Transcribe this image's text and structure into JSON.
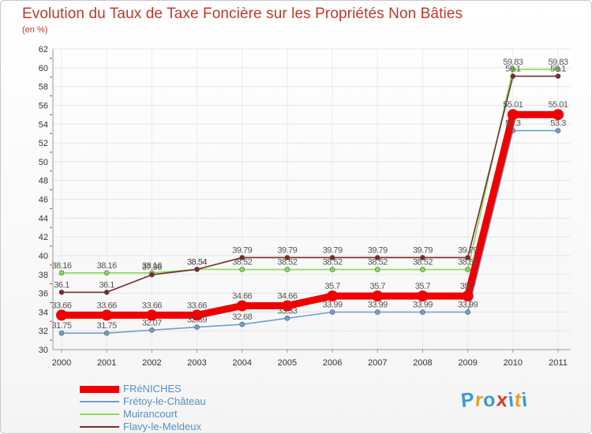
{
  "title": "Evolution du Taux de Taxe Foncière sur les Propriétés Non Bâties",
  "unit": "(en %)",
  "chart_data": {
    "type": "line",
    "title": "Evolution du Taux de Taxe Foncière sur les Propriétés Non Bâties",
    "ylabel": "(en %)",
    "xlabel": "",
    "ylim": [
      30,
      62
    ],
    "yticks": [
      30,
      32,
      34,
      36,
      38,
      40,
      42,
      44,
      46,
      48,
      50,
      52,
      54,
      56,
      58,
      60,
      62
    ],
    "categories": [
      "2000",
      "2001",
      "2002",
      "2003",
      "2004",
      "2005",
      "2006",
      "2007",
      "2008",
      "2009",
      "2010",
      "2011"
    ],
    "grid": true,
    "legend": "bottom-left",
    "series": [
      {
        "name": "FRéNICHES",
        "color": "#ee0000",
        "values": [
          33.66,
          33.66,
          33.66,
          33.66,
          34.66,
          34.66,
          35.7,
          35.7,
          35.7,
          35.7,
          55.01,
          55.01
        ],
        "labels": [
          "33.66",
          "33.66",
          "33.66",
          "33.66",
          "34.66",
          "34.66",
          "35.7",
          "35.7",
          "35.7",
          "35.7",
          "55.01",
          "55.01"
        ]
      },
      {
        "name": "Frétoy-le-Château",
        "color": "#6fa0d0",
        "values": [
          31.75,
          31.75,
          32.07,
          32.39,
          32.68,
          33.33,
          33.99,
          33.99,
          33.99,
          33.99,
          53.3,
          53.3
        ],
        "labels": [
          "31.75",
          "31.75",
          "32.07",
          "32.39",
          "32.68",
          "33.33",
          "33.99",
          "33.99",
          "33.99",
          "33.99",
          "53.3",
          "53.3"
        ]
      },
      {
        "name": "Muirancourt",
        "color": "#88dd55",
        "values": [
          38.16,
          38.16,
          38.16,
          38.54,
          38.52,
          38.52,
          38.52,
          38.52,
          38.52,
          38.52,
          59.83,
          59.83
        ],
        "labels": [
          "38.16",
          "38.16",
          "38.16",
          "38.54",
          "38.52",
          "38.52",
          "38.52",
          "38.52",
          "38.52",
          "38.52",
          "59.83",
          "59.83"
        ]
      },
      {
        "name": "Flavy-le-Meldeux",
        "color": "#7a2a2a",
        "values": [
          36.1,
          36.1,
          37.96,
          38.54,
          39.79,
          39.79,
          39.79,
          39.79,
          39.79,
          39.79,
          59.1,
          59.1
        ],
        "labels": [
          "36.1",
          "36.1",
          "37.96",
          "38.54",
          "39.79",
          "39.79",
          "39.79",
          "39.79",
          "39.79",
          "39.79",
          "59.1",
          "59.1"
        ]
      }
    ]
  },
  "logo": {
    "letters": [
      "P",
      "r",
      "o",
      "x",
      "i",
      "t",
      "i"
    ],
    "colors": [
      "#3a9ad9",
      "#e8a020",
      "#3a9ad9",
      "#d83a2a",
      "#3a9ad9",
      "#e8a020",
      "#3a9ad9"
    ]
  }
}
